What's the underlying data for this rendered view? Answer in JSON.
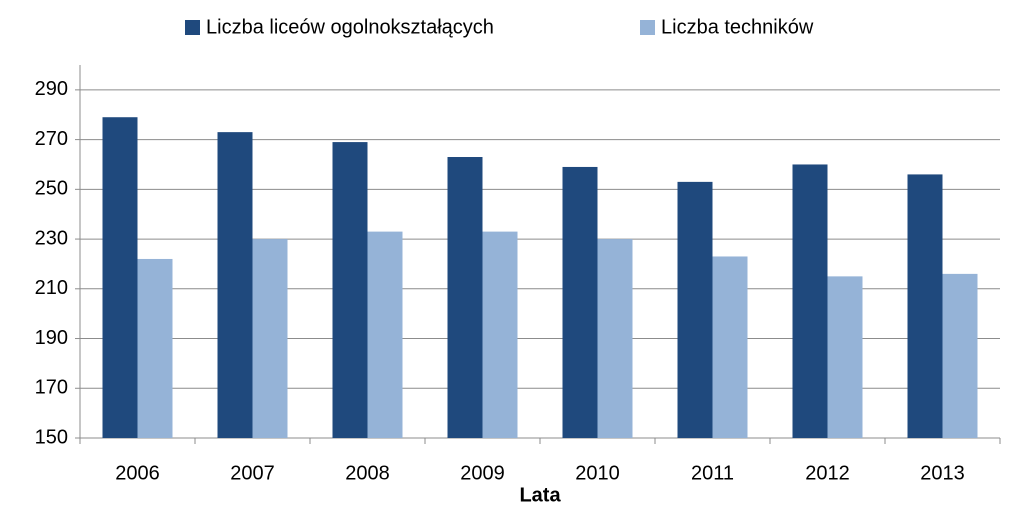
{
  "chart_data": {
    "type": "bar",
    "x_label": "Lata",
    "categories": [
      "2006",
      "2007",
      "2008",
      "2009",
      "2010",
      "2011",
      "2012",
      "2013"
    ],
    "series": [
      {
        "name": "Liczba liceów ogolnokształących",
        "color": "#1f497d",
        "values": [
          279,
          273,
          269,
          263,
          259,
          253,
          260,
          256
        ]
      },
      {
        "name": "Liczba techników",
        "color": "#95b3d7",
        "values": [
          222,
          230,
          233,
          233,
          230,
          223,
          215,
          216
        ]
      }
    ],
    "ylim": [
      150,
      300
    ],
    "yticks": [
      150,
      170,
      190,
      210,
      230,
      250,
      270,
      290
    ],
    "grid": true,
    "legend": "top"
  }
}
